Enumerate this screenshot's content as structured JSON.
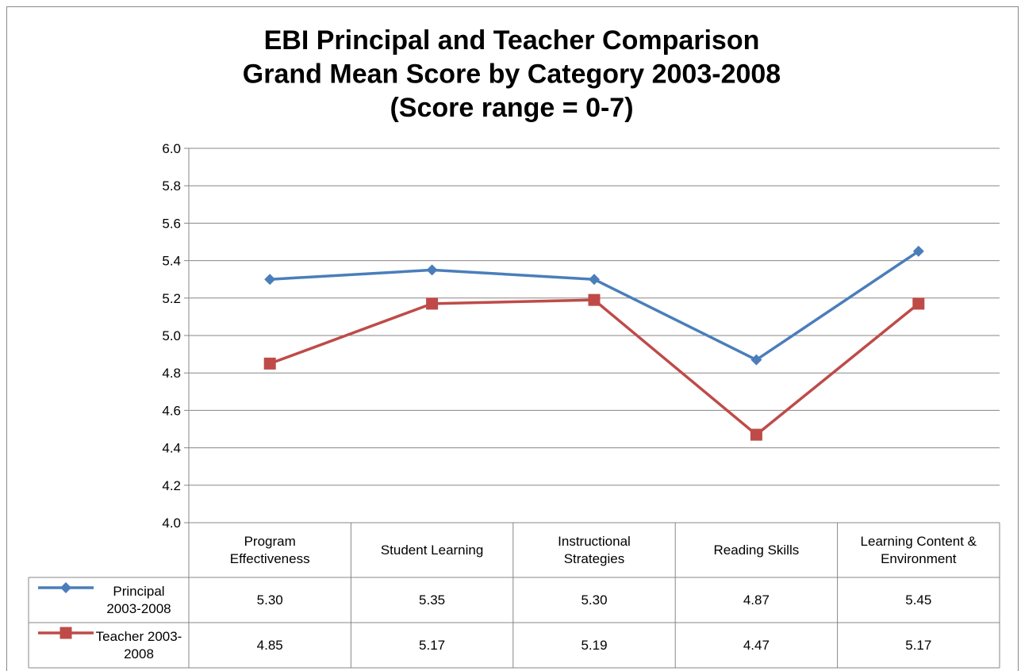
{
  "chart_data": {
    "type": "line",
    "title": [
      "EBI Principal and Teacher Comparison",
      "Grand Mean Score by Category 2003-2008",
      "(Score range = 0-7)"
    ],
    "categories": [
      "Program Effectiveness",
      "Student Learning",
      "Instructional Strategies",
      "Reading Skills",
      "Learning Content & Environment"
    ],
    "series": [
      {
        "name": "Principal 2003-2008",
        "color": "#4a7ebb",
        "marker": "diamond",
        "values": [
          5.3,
          5.35,
          5.3,
          4.87,
          5.45
        ],
        "value_labels": [
          "5.30",
          "5.35",
          "5.30",
          "4.87",
          "5.45"
        ]
      },
      {
        "name": "Teacher 2003-2008",
        "color": "#be4b48",
        "marker": "square",
        "values": [
          4.85,
          5.17,
          5.19,
          4.47,
          5.17
        ],
        "value_labels": [
          "4.85",
          "5.17",
          "5.19",
          "4.47",
          "5.17"
        ]
      }
    ],
    "ylim": [
      4.0,
      6.0
    ],
    "yticks": [
      {
        "value": 4.0,
        "label": "4.0"
      },
      {
        "value": 4.2,
        "label": "4.2"
      },
      {
        "value": 4.4,
        "label": "4.4"
      },
      {
        "value": 4.6,
        "label": "4.6"
      },
      {
        "value": 4.8,
        "label": "4.8"
      },
      {
        "value": 5.0,
        "label": "5.0"
      },
      {
        "value": 5.2,
        "label": "5.2"
      },
      {
        "value": 5.4,
        "label": "5.4"
      },
      {
        "value": 5.6,
        "label": "5.6"
      },
      {
        "value": 5.8,
        "label": "5.8"
      },
      {
        "value": 6.0,
        "label": "6.0"
      }
    ],
    "grid": true,
    "legend": "table"
  }
}
